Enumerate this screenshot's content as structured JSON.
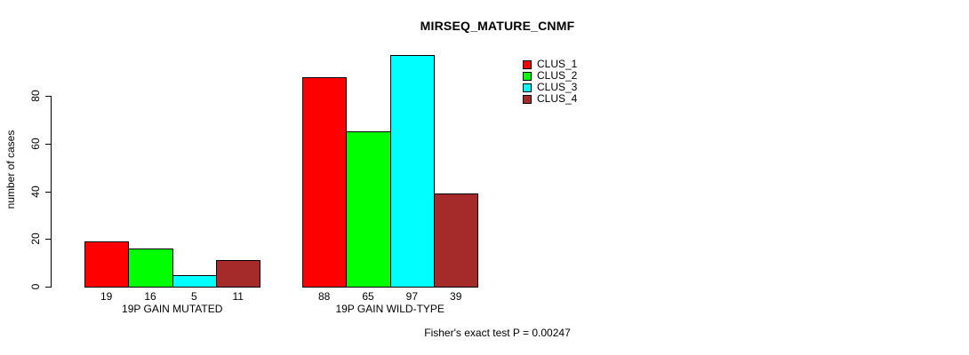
{
  "title": "MIRSEQ_MATURE_CNMF",
  "footer": "Fisher's exact test P = 0.00247",
  "chart_data": {
    "type": "bar",
    "title": "MIRSEQ_MATURE_CNMF",
    "ylabel": "number of cases",
    "xlabel": "",
    "categories": [
      "19P GAIN MUTATED",
      "19P GAIN WILD-TYPE"
    ],
    "series": [
      {
        "name": "CLUS_1",
        "color": "#ff0000",
        "values": [
          19,
          88
        ]
      },
      {
        "name": "CLUS_2",
        "color": "#00ff00",
        "values": [
          16,
          65
        ]
      },
      {
        "name": "CLUS_3",
        "color": "#00ffff",
        "values": [
          5,
          97
        ]
      },
      {
        "name": "CLUS_4",
        "color": "#a52a2a",
        "values": [
          11,
          39
        ]
      }
    ],
    "bar_value_labels": [
      [
        "19",
        "16",
        "5",
        "11"
      ],
      [
        "88",
        "65",
        "97",
        "39"
      ]
    ],
    "yticks": [
      0,
      20,
      40,
      60,
      80
    ],
    "ylim": [
      0,
      97
    ],
    "grid": false,
    "legend_position": "top-right",
    "annotation": "Fisher's exact test P = 0.00247"
  }
}
